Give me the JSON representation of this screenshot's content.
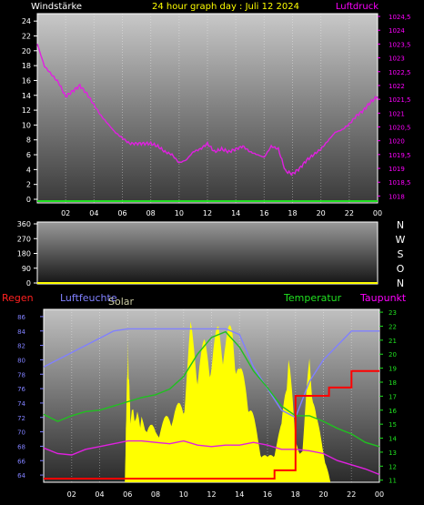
{
  "header": {
    "left_label": "Windstärke",
    "title": "24 hour graph day : Juli 12 2024",
    "right_label": "Luftdruck"
  },
  "bottom_header": {
    "rain": "Regen",
    "humidity": "Luftfeuchte",
    "solar": "Solar",
    "temperature": "Temperatur",
    "dewpoint": "Taupunkt"
  },
  "compass": [
    "N",
    "W",
    "S",
    "O",
    "N"
  ],
  "colors": {
    "pressure": "#e020e0",
    "wind": "#20e020",
    "humidity": "#8080ff",
    "temperature": "#20c020",
    "dewpoint": "#e020e0",
    "rain": "#ff0000",
    "solar": "#ffff00",
    "header_yellow": "#ffff00",
    "header_pink": "#ff00ff"
  },
  "chart_data": [
    {
      "type": "line",
      "name": "wind-pressure",
      "x_ticks": [
        "02",
        "04",
        "06",
        "08",
        "10",
        "12",
        "14",
        "16",
        "18",
        "20",
        "22",
        "00"
      ],
      "y_left_ticks": [
        "0",
        "2",
        "4",
        "6",
        "8",
        "10",
        "12",
        "14",
        "16",
        "18",
        "20",
        "22",
        "24"
      ],
      "y_left_range": [
        0,
        25
      ],
      "y_right_ticks": [
        "1018",
        "1018,5",
        "1019",
        "1019,5",
        "1020",
        "1020,5",
        "1021",
        "1021,5",
        "1022",
        "1022,5",
        "1023",
        "1023,5",
        "1024",
        "1024,5"
      ],
      "y_right_range": [
        1017.75,
        1024.6
      ],
      "series": [
        {
          "name": "Luftdruck",
          "axis": "right",
          "x": [
            0,
            0.5,
            1,
            1.5,
            2,
            2.5,
            3,
            3.5,
            4,
            4.5,
            5,
            5.5,
            6,
            6.5,
            7,
            7.5,
            8,
            8.5,
            9,
            9.5,
            10,
            10.5,
            11,
            11.5,
            12,
            12.5,
            13,
            13.5,
            14,
            14.5,
            15,
            15.5,
            16,
            16.5,
            17,
            17.5,
            18,
            18.5,
            19,
            19.5,
            20,
            20.5,
            21,
            21.5,
            22,
            22.5,
            23,
            23.5,
            24
          ],
          "values": [
            1023.5,
            1022.7,
            1022.4,
            1022.1,
            1021.6,
            1021.8,
            1022.0,
            1021.7,
            1021.3,
            1020.9,
            1020.6,
            1020.3,
            1020.1,
            1019.9,
            1019.9,
            1019.9,
            1019.9,
            1019.8,
            1019.6,
            1019.5,
            1019.2,
            1019.3,
            1019.6,
            1019.7,
            1019.9,
            1019.6,
            1019.7,
            1019.6,
            1019.7,
            1019.8,
            1019.6,
            1019.5,
            1019.4,
            1019.8,
            1019.7,
            1018.9,
            1018.8,
            1019.0,
            1019.3,
            1019.5,
            1019.7,
            1020.0,
            1020.3,
            1020.4,
            1020.6,
            1020.9,
            1021.1,
            1021.4,
            1021.6
          ]
        },
        {
          "name": "Windstärke",
          "axis": "left",
          "x": [
            0,
            24
          ],
          "values": [
            0,
            0
          ]
        }
      ]
    },
    {
      "type": "line",
      "name": "wind-direction",
      "x_ticks": [],
      "y_ticks": [
        "0",
        "90",
        "180",
        "270",
        "360"
      ],
      "y_range": [
        0,
        360
      ],
      "series": []
    },
    {
      "type": "line",
      "name": "humidity-temperature",
      "x_ticks": [
        "02",
        "04",
        "06",
        "08",
        "10",
        "12",
        "14",
        "16",
        "18",
        "20",
        "22",
        "00"
      ],
      "y_left_ticks": [
        "64",
        "66",
        "68",
        "70",
        "72",
        "74",
        "76",
        "78",
        "80",
        "82",
        "84",
        "86"
      ],
      "y_left_range": [
        63,
        87
      ],
      "y_right_ticks": [
        "11",
        "12",
        "13",
        "14",
        "15",
        "16",
        "17",
        "18",
        "19",
        "20",
        "21",
        "22",
        "23"
      ],
      "y_right_range": [
        10.85,
        23.2
      ],
      "series": [
        {
          "name": "Luftfeuchte",
          "axis": "left",
          "x": [
            0,
            1,
            2,
            3,
            4,
            5,
            6,
            7,
            8,
            9,
            10,
            11,
            12,
            13,
            14,
            15,
            16,
            17,
            18,
            19,
            20,
            21,
            22,
            23,
            24
          ],
          "values": [
            79,
            80,
            81,
            82,
            83,
            84,
            84.3,
            84.3,
            84.3,
            84.3,
            84.3,
            84.3,
            84.3,
            84.3,
            83.5,
            79,
            76,
            73,
            72,
            77,
            80,
            82,
            84,
            84,
            84
          ]
        },
        {
          "name": "Temperatur",
          "axis": "right",
          "x": [
            0,
            1,
            2,
            3,
            4,
            5,
            6,
            7,
            8,
            9,
            10,
            11,
            12,
            13,
            14,
            15,
            16,
            17,
            18,
            19,
            20,
            21,
            22,
            23,
            24
          ],
          "values": [
            15.7,
            15.2,
            15.6,
            15.9,
            16.0,
            16.3,
            16.6,
            16.9,
            17.1,
            17.5,
            18.4,
            20.0,
            21.2,
            21.6,
            20.5,
            18.8,
            17.6,
            16.3,
            15.6,
            15.6,
            15.2,
            14.7,
            14.3,
            13.7,
            13.4
          ]
        },
        {
          "name": "Taupunkt",
          "axis": "right",
          "x": [
            0,
            1,
            2,
            3,
            4,
            5,
            6,
            7,
            8,
            9,
            10,
            11,
            12,
            13,
            14,
            15,
            16,
            17,
            18,
            19,
            20,
            21,
            22,
            23,
            24
          ],
          "values": [
            13.3,
            12.9,
            12.8,
            13.2,
            13.4,
            13.6,
            13.8,
            13.8,
            13.7,
            13.6,
            13.8,
            13.5,
            13.4,
            13.5,
            13.5,
            13.7,
            13.5,
            13.2,
            13.2,
            13.1,
            12.9,
            12.4,
            12.1,
            11.8,
            11.4
          ]
        },
        {
          "name": "Regen",
          "axis": "none",
          "x": [
            0,
            14,
            16.5,
            18,
            20.4,
            22,
            24
          ],
          "values": [
            0,
            0,
            0.05,
            0.5,
            0.55,
            0.65,
            0.65
          ]
        },
        {
          "name": "Solar",
          "axis": "none",
          "x": [
            5.8,
            6,
            6.2,
            7,
            8,
            9,
            10,
            10.5,
            11,
            11.5,
            12,
            12.5,
            13,
            13.5,
            14,
            14.5,
            15,
            15.5,
            16,
            16.5,
            17,
            17.5,
            18,
            18.5,
            19,
            19.5,
            20,
            20.5
          ],
          "values": [
            0,
            0.85,
            0.45,
            0.4,
            0.32,
            0.42,
            0.5,
            0.95,
            0.75,
            0.85,
            0.8,
            0.95,
            0.9,
            0.95,
            0.7,
            0.6,
            0.4,
            0.2,
            0.15,
            0.2,
            0.35,
            0.85,
            0.25,
            0.2,
            0.8,
            0.4,
            0.2,
            0
          ]
        }
      ]
    }
  ]
}
